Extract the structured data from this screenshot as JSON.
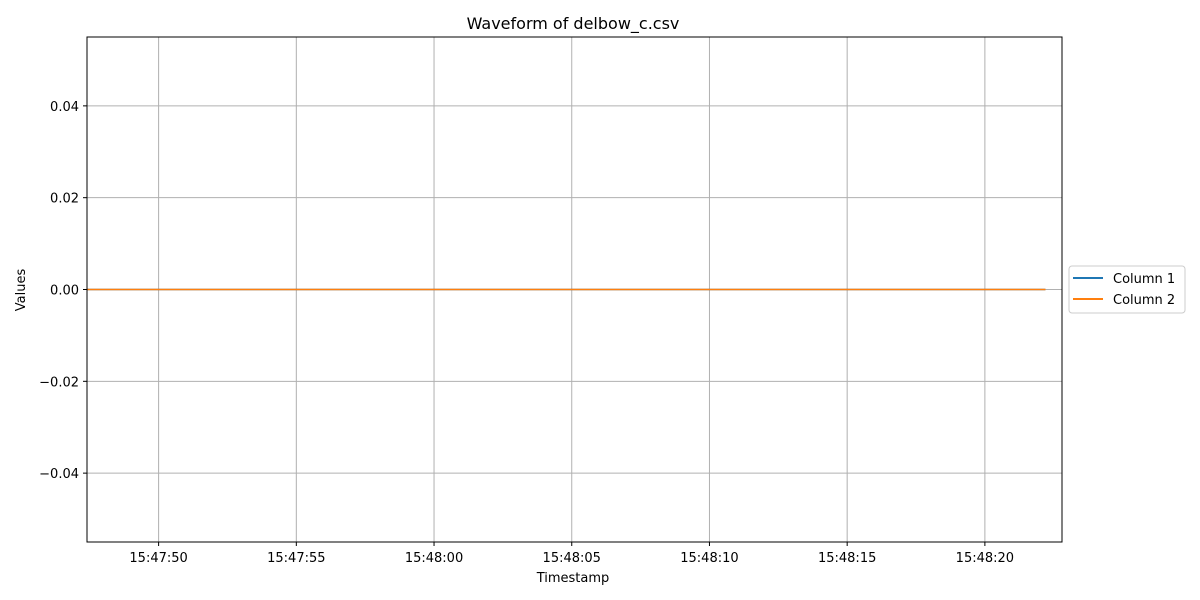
{
  "chart_data": {
    "type": "line",
    "title": "Waveform of delbow_c.csv",
    "xlabel": "Timestamp",
    "ylabel": "Values",
    "x_axis_type": "time",
    "xlim": [
      "15:47:47.4",
      "15:48:22.8"
    ],
    "ylim": [
      -0.055,
      0.055
    ],
    "x_ticks": [
      "15:47:50",
      "15:47:55",
      "15:48:00",
      "15:48:05",
      "15:48:10",
      "15:48:15",
      "15:48:20"
    ],
    "y_ticks": [
      {
        "value": 0.04,
        "label": "0.04"
      },
      {
        "value": 0.02,
        "label": "0.02"
      },
      {
        "value": 0.0,
        "label": "0.00"
      },
      {
        "value": -0.02,
        "label": "−0.02"
      },
      {
        "value": -0.04,
        "label": "−0.04"
      }
    ],
    "grid": true,
    "legend_position": "right, outside plot, vertically centered",
    "series": [
      {
        "name": "Column 1",
        "color": "#1f77b4",
        "points": [
          {
            "x": "15:47:47.4",
            "y": 0
          },
          {
            "x": "15:48:22.2",
            "y": 0
          }
        ]
      },
      {
        "name": "Column 2",
        "color": "#ff7f0e",
        "points": [
          {
            "x": "15:47:47.4",
            "y": 0
          },
          {
            "x": "15:48:22.2",
            "y": 0
          }
        ]
      }
    ]
  }
}
